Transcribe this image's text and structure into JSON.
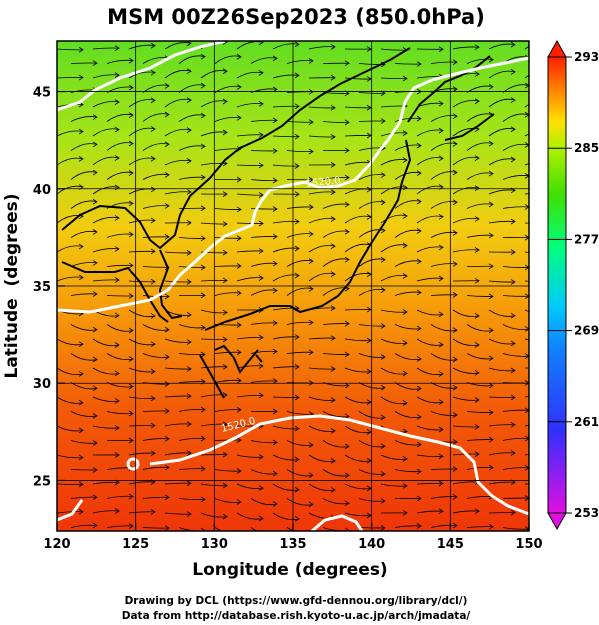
{
  "title": "MSM 00Z26Sep2023 (850.0hPa)",
  "x_axis": {
    "label": "Longitude (degrees)",
    "ticks": [
      "120",
      "125",
      "130",
      "135",
      "140",
      "145",
      "150"
    ],
    "range": [
      120,
      150
    ]
  },
  "y_axis": {
    "label": "Latitude  (degrees)",
    "ticks": [
      "25",
      "30",
      "35",
      "40",
      "45"
    ],
    "range": [
      22.4,
      47.6
    ]
  },
  "contour_labels": [
    "1520.0",
    "1520.0"
  ],
  "colorbar": {
    "ticks": [
      "293",
      "285",
      "277",
      "269",
      "261",
      "253"
    ],
    "range": [
      253,
      293
    ],
    "colors": [
      "#e010e0",
      "#3030ff",
      "#00c8ff",
      "#00ff80",
      "#80ff00",
      "#ffe000",
      "#ff8000",
      "#ff2000"
    ]
  },
  "credits": {
    "line1": "Drawing by DCL (https://www.gfd-dennou.org/library/dcl/)",
    "line2": "Data from http://database.rish.kyoto-u.ac.jp/arch/jmadata/"
  }
}
